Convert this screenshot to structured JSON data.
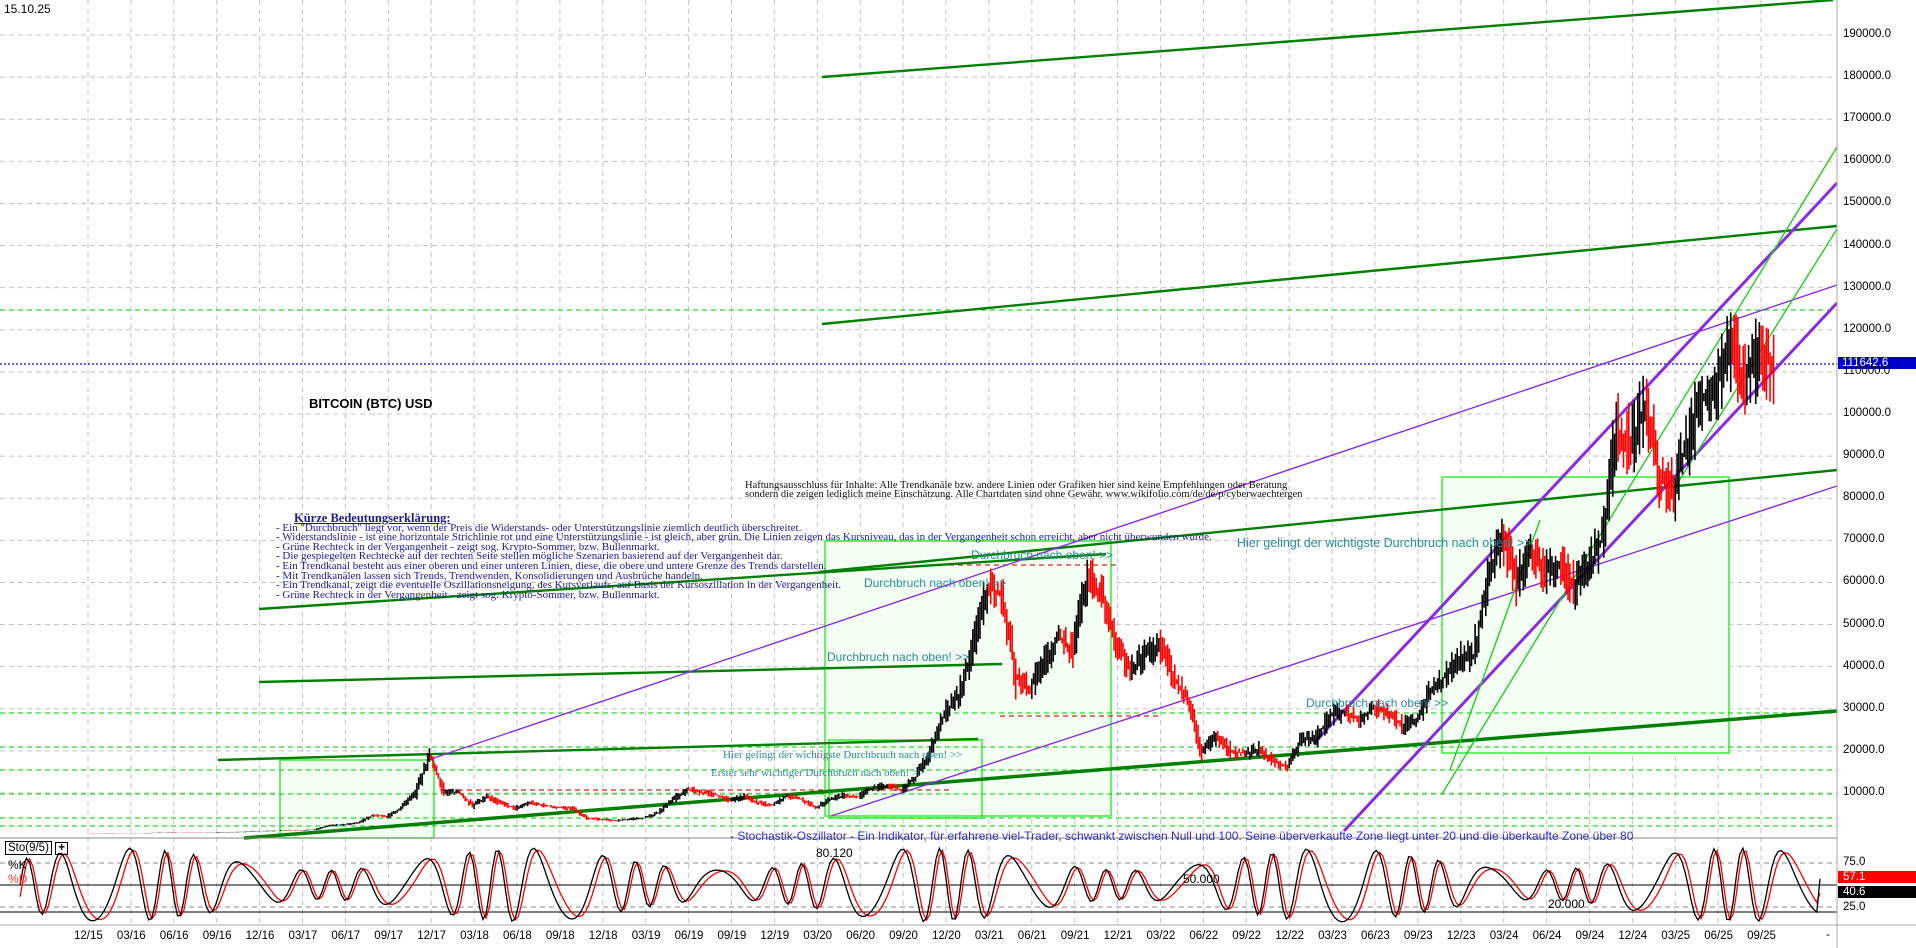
{
  "header": {
    "date": "15.10.25"
  },
  "chart_data": {
    "type": "line",
    "title": "BITCOIN (BTC) USD",
    "x_start": "12/15",
    "x_ticks": [
      "12/15",
      "03/16",
      "06/16",
      "09/16",
      "12/16",
      "03/17",
      "06/17",
      "09/17",
      "12/17",
      "03/18",
      "06/18",
      "09/18",
      "12/18",
      "03/19",
      "06/19",
      "09/19",
      "12/19",
      "03/20",
      "06/20",
      "09/20",
      "12/20",
      "03/21",
      "06/21",
      "09/21",
      "12/21",
      "03/22",
      "06/22",
      "09/22",
      "12/22",
      "03/23",
      "06/23",
      "09/23",
      "12/23",
      "03/24",
      "06/24",
      "09/24",
      "12/24",
      "03/25",
      "06/25",
      "09/25"
    ],
    "y_ticks": [
      10000,
      20000,
      30000,
      40000,
      50000,
      60000,
      70000,
      80000,
      90000,
      100000,
      110000,
      120000,
      130000,
      140000,
      150000,
      160000,
      170000,
      180000,
      190000
    ],
    "y_tick_labels": [
      "10000.0",
      "20000.0",
      "30000.0",
      "40000.0",
      "50000.0",
      "60000.0",
      "70000.0",
      "80000.0",
      "90000.0",
      "100000.0",
      "110000.0",
      "120000.0",
      "130000.0",
      "140000.0",
      "150000.0",
      "160000.0",
      "170000.0",
      "180000.0",
      "190000.0"
    ],
    "ylim": [
      0,
      200000
    ],
    "grid": true,
    "current_price": 111642.6,
    "current_price_label": "111642.6",
    "monthly_close": [
      430,
      370,
      440,
      415,
      450,
      530,
      670,
      620,
      575,
      610,
      700,
      740,
      960,
      970,
      1190,
      1080,
      1350,
      2300,
      2480,
      2870,
      4700,
      4340,
      6450,
      10000,
      19000,
      10200,
      10300,
      6900,
      9200,
      7500,
      6400,
      7700,
      7000,
      6600,
      6300,
      4000,
      3700,
      3450,
      3800,
      4100,
      5300,
      8500,
      10800,
      10100,
      9600,
      8300,
      9200,
      7600,
      7200,
      9350,
      8550,
      6400,
      8600,
      9450,
      9150,
      11300,
      11650,
      10800,
      13800,
      19700,
      29000,
      33100,
      45200,
      58800,
      57700,
      37300,
      35000,
      41500,
      47100,
      43800,
      61300,
      57000,
      46300,
      38500,
      43200,
      45500,
      37700,
      31800,
      19900,
      23300,
      20000,
      19400,
      20500,
      17200,
      16500,
      23100,
      23100,
      28500,
      29300,
      27200,
      30500,
      29200,
      26000,
      27000,
      34500,
      37700,
      42300,
      42600,
      61200,
      71300,
      60600,
      67500,
      62700,
      64600,
      59000,
      63300,
      70200,
      96400,
      93400,
      102400,
      84400,
      82500,
      94200,
      104600,
      107100,
      115700,
      108200,
      114000,
      111642.6
    ],
    "colors": {
      "price": "#000000",
      "down": "#ff0000",
      "trend_green": "#008000",
      "light_green": "#00e000",
      "purple": "#8a2be2",
      "current_price_line": "#0000cc"
    }
  },
  "annotations": {
    "legend_title": "Kürze Bedeutungserklärung:",
    "legend_lines": [
      "- Ein \"Durchbruch\" liegt vor, wenn der Preis die Widerstands- oder Unterstützungslinie ziemlich deutlich überschreitet.",
      "- Widerstandslinie - ist eine horizontale Strichlinie rot und eine Unterstützungslinie - ist gleich, aber grün. Die Linien zeigen das Kursniveau, das in der Vergangenheit schon erreicht, aber nicht überwunden wurde.",
      "- Grüne Rechteck in der Vergangenheit - zeigt sog. Krypto-Sommer, bzw. Bullenmarkt.",
      "- Die gespiegelten Rechtecke auf der rechten Seite stellen mögliche Szenarien basierend auf der Vergangenheit dar.",
      "- Ein Trendkanal besteht aus einer oberen und einer unteren Linien, diese, die obere und untere Grenze des Trends darstellen.",
      "- Mit Trendkanälen lassen sich Trends, Trendwenden, Konsolidierungen und Ausbrüche handeln.",
      "- Ein Trendkanal, zeigt die eventuelle Oszillationsneigung, des Kursverlaufs, auf Basis der Kursoszillation in der Vergangenheit.",
      "- Grüne Rechteck in der Vergangenheit - zeigt sog. Krypto-Sommer, bzw. Bullenmarkt."
    ],
    "disclaimer_1": "Haftungsausschluss für Inhalte: Alle Trendkanäle bzw. andere Linien oder Grafiken hier sind keine Empfehlungen oder Beratung",
    "disclaimer_2": "sondern die zeigen lediglich meine Einschätzung. Alle Chartdaten sind ohne Gewähr. www.wikifolio.com/de/de/p/cyberwaechtergen",
    "breakout_1": "Durchbruch nach oben! >>",
    "breakout_2": "Durchbruch nach oben! >>",
    "breakout_3": "Durchbruch nach oben! >>",
    "breakout_4": "Durchbruch nach oben! >>",
    "most_important_breakout": "Hier gelingt der wichtigste Durchbruch nach oben! >>",
    "most_important_breakout_old": "Hier gelingt der wichtigste Durchbruch nach oben! >>",
    "first_breakout": "Erster sehr wichtiger Durchbruch nach oben! >>",
    "stoch_description": "- Stochastik-Oszillator - Ein Indikator, für erfahrene viel-Trader, schwankt zwischen Null und 100. Seine überverkaufte Zone  liegt unter 20 und die überkaufte Zone  über 80"
  },
  "stochastic": {
    "title": "Sto(9/5)",
    "expand_button": "+",
    "k_label": "%K",
    "d_label": "%D",
    "levels": [
      "75.0",
      "25.0"
    ],
    "k_value": "57.1",
    "d_value": "40.6",
    "k_value_num": 57.1,
    "d_value_num": 40.6,
    "marker_80": "80.120",
    "marker_50": "50.000",
    "marker_20": "20.000",
    "colors": {
      "k": "#000000",
      "d": "#ff0000"
    }
  },
  "footer": {
    "scroll_marker": "-"
  }
}
